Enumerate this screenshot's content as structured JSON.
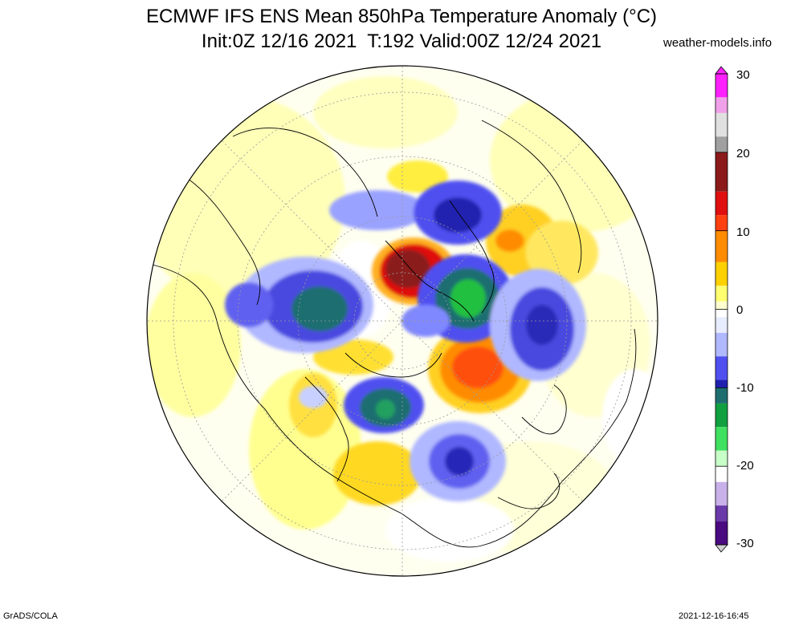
{
  "title_line_1": "ECMWF IFS ENS Mean 850hPa Temperature Anomaly (°C)",
  "title_line_2": "Init:0Z 12/16 2021  T:192 Valid:00Z 12/24 2021",
  "credit": "weather-models.info",
  "footer_left": "GrADS/COLA",
  "footer_right": "2021-12-16-16:45",
  "map": {
    "projection": "polar-stereographic (north pole)",
    "field": "850hPa temperature anomaly",
    "units": "°C",
    "anomalies": [
      {
        "sign": "warm",
        "level": "strong",
        "color": "#b01010"
      },
      {
        "sign": "warm",
        "level": "moderate",
        "color": "#ff7a1a"
      },
      {
        "sign": "cold",
        "level": "strong",
        "color": "#22c040"
      },
      {
        "sign": "cold",
        "level": "strong",
        "color": "#1f7a80"
      },
      {
        "sign": "cold",
        "level": "moderate",
        "color": "#3b3bd8"
      }
    ]
  },
  "colorbar": {
    "min": -30,
    "max": 30,
    "labels": [
      "30",
      "20",
      "10",
      "0",
      "-10",
      "-20",
      "-30"
    ],
    "stops": [
      {
        "value": 30,
        "color": "#ff20ff"
      },
      {
        "value": 27,
        "color": "#f0a0e8"
      },
      {
        "value": 25,
        "color": "#e0e0e0"
      },
      {
        "value": 22,
        "color": "#a0a0a0"
      },
      {
        "value": 20,
        "color": "#8b1a1a"
      },
      {
        "value": 15,
        "color": "#e01010"
      },
      {
        "value": 12,
        "color": "#ff4010"
      },
      {
        "value": 10,
        "color": "#ff8c00"
      },
      {
        "value": 6,
        "color": "#ffd000"
      },
      {
        "value": 3,
        "color": "#ffff70"
      },
      {
        "value": 1,
        "color": "#ffffd0"
      },
      {
        "value": 0,
        "color": "#ffffff"
      },
      {
        "value": -1,
        "color": "#e8ecff"
      },
      {
        "value": -3,
        "color": "#b0b8ff"
      },
      {
        "value": -6,
        "color": "#5050f0"
      },
      {
        "value": -9,
        "color": "#2020b0"
      },
      {
        "value": -10,
        "color": "#1e6e70"
      },
      {
        "value": -12,
        "color": "#10a040"
      },
      {
        "value": -15,
        "color": "#40e060"
      },
      {
        "value": -18,
        "color": "#c8ffc8"
      },
      {
        "value": -20,
        "color": "#ffffff"
      },
      {
        "value": -22,
        "color": "#c8b0e8"
      },
      {
        "value": -25,
        "color": "#6a3aa8"
      },
      {
        "value": -27,
        "color": "#4a0a80"
      },
      {
        "value": -30,
        "color": "#d0d0d0"
      }
    ]
  }
}
